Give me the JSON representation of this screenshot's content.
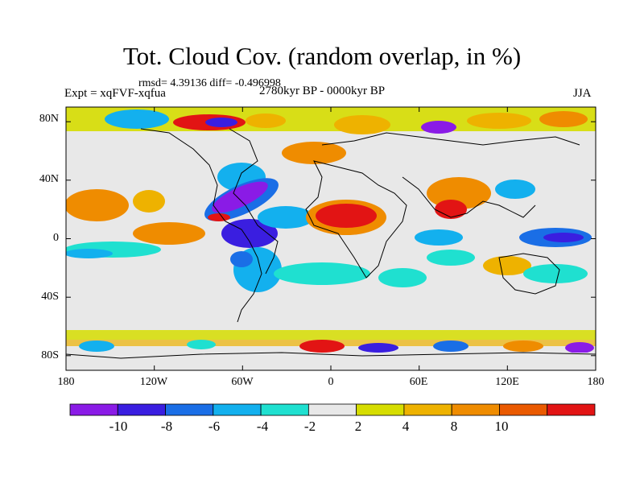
{
  "title": "Tot. Cloud Cov. (random overlap, in %)",
  "stats": "rmsd= 4.39136 diff= -0.496998",
  "experiment": "Expt = xqFVF-xqfua",
  "period": "2780kyr BP - 0000kyr BP",
  "season": "JJA",
  "map": {
    "lat_labels": [
      "80N",
      "40N",
      "0",
      "40S",
      "80S"
    ],
    "lon_labels": [
      "180",
      "120W",
      "60W",
      "0",
      "60E",
      "120E",
      "180"
    ],
    "lon_range": [
      -180,
      180
    ],
    "lat_range": [
      -90,
      90
    ]
  },
  "colorbar": {
    "labels": [
      "-10",
      "-8",
      "-6",
      "-4",
      "-2",
      "2",
      "4",
      "8",
      "10"
    ],
    "colors": [
      "#8a1be6",
      "#3a1ee0",
      "#1a6ee6",
      "#13b0ee",
      "#1fe0d0",
      "#e8e8e8",
      "#d6dd00",
      "#eeb200",
      "#ef8c00",
      "#ea5a00",
      "#e21414"
    ]
  }
}
